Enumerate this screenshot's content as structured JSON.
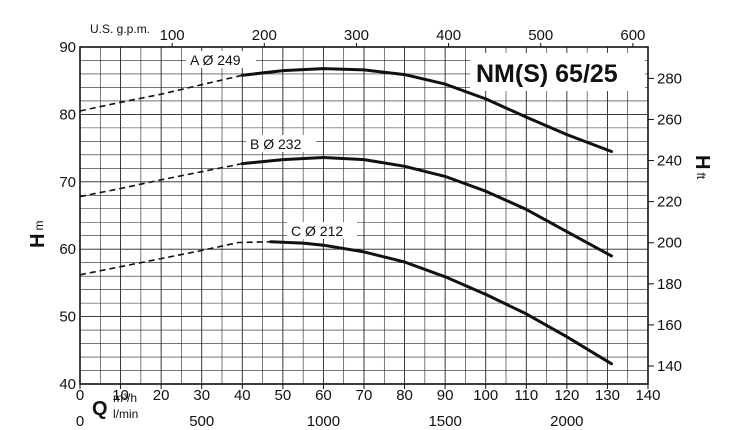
{
  "chart_data": {
    "type": "line",
    "title": "NM(S) 65/25",
    "x": {
      "label": "Q",
      "unit": "m³/h",
      "ticks": [
        0,
        10,
        20,
        30,
        40,
        50,
        60,
        70,
        80,
        90,
        100,
        110,
        120,
        130,
        140
      ],
      "range": [
        0,
        140
      ]
    },
    "x_lmin": {
      "unit": "l/min",
      "ticks": [
        0,
        500,
        1000,
        1500,
        2000
      ]
    },
    "x_gpm": {
      "unit": "U.S. g.p.m.",
      "ticks": [
        100,
        200,
        300,
        400,
        500,
        600
      ]
    },
    "y": {
      "label": "H",
      "unit": "m",
      "ticks": [
        40,
        50,
        60,
        70,
        80,
        90
      ],
      "range": [
        40,
        90
      ]
    },
    "y_ft": {
      "label": "H",
      "unit": "ft",
      "ticks": [
        140,
        160,
        180,
        200,
        220,
        240,
        260,
        280
      ]
    },
    "grid": true,
    "series": [
      {
        "name": "A Ø 249",
        "dashed": [
          [
            0,
            80.5
          ],
          [
            10,
            81.8
          ],
          [
            20,
            83.0
          ],
          [
            30,
            84.4
          ],
          [
            40,
            85.8
          ]
        ],
        "solid": [
          [
            40,
            85.8
          ],
          [
            50,
            86.5
          ],
          [
            60,
            86.8
          ],
          [
            70,
            86.6
          ],
          [
            80,
            85.9
          ],
          [
            90,
            84.5
          ],
          [
            100,
            82.3
          ],
          [
            110,
            79.6
          ],
          [
            120,
            77.0
          ],
          [
            131,
            74.5
          ]
        ]
      },
      {
        "name": "B Ø 232",
        "dashed": [
          [
            0,
            67.8
          ],
          [
            10,
            69.0
          ],
          [
            20,
            70.3
          ],
          [
            30,
            71.5
          ],
          [
            40,
            72.7
          ]
        ],
        "solid": [
          [
            40,
            72.7
          ],
          [
            50,
            73.3
          ],
          [
            60,
            73.6
          ],
          [
            70,
            73.3
          ],
          [
            80,
            72.3
          ],
          [
            90,
            70.8
          ],
          [
            100,
            68.6
          ],
          [
            110,
            65.9
          ],
          [
            120,
            62.6
          ],
          [
            131,
            59.0
          ]
        ]
      },
      {
        "name": "C Ø 212",
        "dashed": [
          [
            0,
            56.2
          ],
          [
            10,
            57.4
          ],
          [
            20,
            58.6
          ],
          [
            30,
            59.8
          ],
          [
            39,
            61.0
          ],
          [
            47,
            61.1
          ]
        ],
        "solid": [
          [
            47,
            61.1
          ],
          [
            55,
            60.9
          ],
          [
            60,
            60.6
          ],
          [
            70,
            59.6
          ],
          [
            80,
            58.1
          ],
          [
            90,
            55.9
          ],
          [
            100,
            53.3
          ],
          [
            110,
            50.4
          ],
          [
            120,
            47.0
          ],
          [
            131,
            43.0
          ]
        ]
      }
    ]
  }
}
